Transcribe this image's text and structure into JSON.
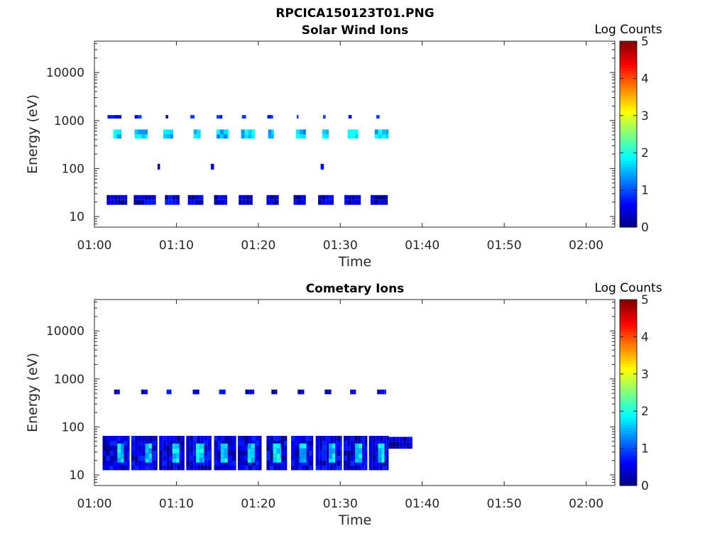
{
  "figure": {
    "title": "RPCICA150123T01.PNG"
  },
  "chart_data": [
    {
      "type": "heatmap",
      "title": "Solar Wind Ions",
      "xlabel": "Time",
      "ylabel": "Energy (eV)",
      "x_ticks": [
        "01:00",
        "01:10",
        "01:20",
        "01:30",
        "01:40",
        "01:50",
        "02:00"
      ],
      "xlim_minutes": [
        0,
        63.5
      ],
      "y_ticks": [
        "10",
        "100",
        "1000",
        "10000"
      ],
      "y_scale": "log",
      "ylim": [
        6,
        45000
      ],
      "colorbar": {
        "label": "Log Counts",
        "ticks": [
          "0",
          "1",
          "2",
          "3",
          "4",
          "5"
        ],
        "range": [
          0,
          5
        ],
        "colormap": "jet"
      },
      "grid": false,
      "bands": [
        {
          "energy": [
            17.5,
            28
          ],
          "value": 0.35,
          "bursts": [
            [
              1.5,
              4.0
            ],
            [
              4.8,
              7.5
            ],
            [
              8.6,
              10.4
            ],
            [
              11.4,
              13.3
            ],
            [
              14.6,
              16.2
            ],
            [
              17.6,
              19.3
            ],
            [
              21.0,
              22.5
            ],
            [
              24.3,
              25.8
            ],
            [
              27.3,
              29.2
            ],
            [
              30.5,
              32.5
            ],
            [
              33.7,
              35.8
            ]
          ]
        },
        {
          "energy": [
            420,
            650
          ],
          "value": 1.6,
          "bursts": [
            [
              2.3,
              3.3
            ],
            [
              4.9,
              6.5
            ],
            [
              8.4,
              9.6
            ],
            [
              12.1,
              13.0
            ],
            [
              14.9,
              16.4
            ],
            [
              17.9,
              19.6
            ],
            [
              21.2,
              21.9
            ],
            [
              24.6,
              25.8
            ],
            [
              27.8,
              28.6
            ],
            [
              30.9,
              32.2
            ],
            [
              34.2,
              35.9
            ]
          ]
        },
        {
          "energy": [
            1100,
            1300
          ],
          "value": 0.6,
          "bursts": [
            [
              1.6,
              3.3
            ],
            [
              4.9,
              5.8
            ],
            [
              8.7,
              9.0
            ],
            [
              11.7,
              12.2
            ],
            [
              14.9,
              15.6
            ],
            [
              18.0,
              18.5
            ],
            [
              21.1,
              21.8
            ],
            [
              24.7,
              24.9
            ],
            [
              27.9,
              28.2
            ],
            [
              31.0,
              31.4
            ],
            [
              34.4,
              34.8
            ]
          ]
        },
        {
          "energy": [
            95,
            125
          ],
          "value": 0.4,
          "bursts": [
            [
              7.7,
              8.0
            ],
            [
              14.2,
              14.6
            ],
            [
              27.6,
              28.0
            ]
          ]
        }
      ]
    },
    {
      "type": "heatmap",
      "title": "Cometary Ions",
      "xlabel": "Time",
      "ylabel": "Energy (eV)",
      "x_ticks": [
        "01:00",
        "01:10",
        "01:20",
        "01:30",
        "01:40",
        "01:50",
        "02:00"
      ],
      "xlim_minutes": [
        0,
        63.5
      ],
      "y_ticks": [
        "10",
        "100",
        "1000",
        "10000"
      ],
      "y_scale": "log",
      "ylim": [
        6,
        45000
      ],
      "colorbar": {
        "label": "Log Counts",
        "ticks": [
          "0",
          "1",
          "2",
          "3",
          "4",
          "5"
        ],
        "range": [
          0,
          5
        ],
        "colormap": "jet"
      },
      "grid": false,
      "bands": [
        {
          "energy": [
            12.5,
            65
          ],
          "value": 0.45,
          "bursts": [
            [
              1.0,
              4.3
            ],
            [
              4.5,
              7.7
            ],
            [
              7.9,
              11.0
            ],
            [
              11.2,
              14.3
            ],
            [
              14.6,
              17.3
            ],
            [
              17.5,
              20.4
            ],
            [
              21.0,
              23.5
            ],
            [
              24.0,
              26.7
            ],
            [
              27.0,
              30.2
            ],
            [
              30.4,
              33.3
            ],
            [
              33.5,
              35.9
            ]
          ]
        },
        {
          "energy": [
            18,
            45
          ],
          "value": 1.7,
          "bursts": [
            [
              2.8,
              3.6
            ],
            [
              6.2,
              7.0
            ],
            [
              9.5,
              10.4
            ],
            [
              12.4,
              13.4
            ],
            [
              15.4,
              16.3
            ],
            [
              18.7,
              19.6
            ],
            [
              21.8,
              22.8
            ],
            [
              25.0,
              25.9
            ],
            [
              28.6,
              29.4
            ],
            [
              31.8,
              32.7
            ],
            [
              34.6,
              35.4
            ]
          ]
        },
        {
          "energy": [
            35,
            62
          ],
          "value": 0.3,
          "bursts": [
            [
              35.9,
              38.8
            ]
          ]
        },
        {
          "energy": [
            480,
            600
          ],
          "value": 0.4,
          "bursts": [
            [
              2.4,
              3.1
            ],
            [
              5.7,
              6.5
            ],
            [
              8.8,
              9.4
            ],
            [
              12.0,
              12.8
            ],
            [
              15.2,
              16.0
            ],
            [
              18.4,
              19.5
            ],
            [
              21.6,
              22.3
            ],
            [
              24.8,
              25.6
            ],
            [
              28.1,
              28.9
            ],
            [
              31.2,
              31.9
            ],
            [
              34.5,
              35.6
            ]
          ]
        }
      ]
    }
  ]
}
